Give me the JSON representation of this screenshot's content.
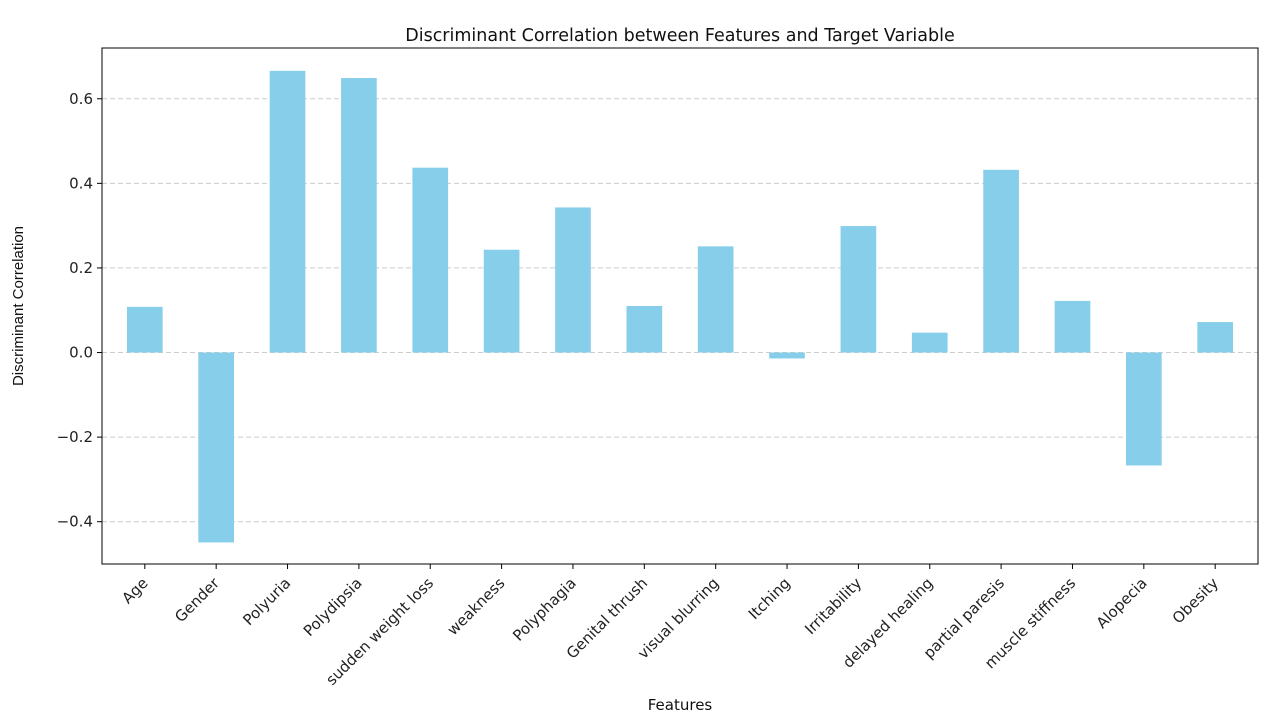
{
  "chart_data": {
    "type": "bar",
    "title": "Discriminant Correlation between Features and Target Variable",
    "xlabel": "Features",
    "ylabel": "Discriminant Correlation",
    "categories": [
      "Age",
      "Gender",
      "Polyuria",
      "Polydipsia",
      "sudden weight loss",
      "weakness",
      "Polyphagia",
      "Genital thrush",
      "visual blurring",
      "Itching",
      "Irritability",
      "delayed healing",
      "partial paresis",
      "muscle stiffness",
      "Alopecia",
      "Obesity"
    ],
    "values": [
      0.108,
      -0.449,
      0.666,
      0.649,
      0.437,
      0.243,
      0.343,
      0.11,
      0.251,
      -0.014,
      0.299,
      0.047,
      0.432,
      0.122,
      -0.267,
      0.072
    ],
    "ylim": [
      -0.5,
      0.72
    ],
    "yticks": [
      -0.4,
      -0.2,
      0.0,
      0.2,
      0.4,
      0.6
    ],
    "ytick_labels": [
      "−0.4",
      "−0.2",
      "0.0",
      "0.2",
      "0.4",
      "0.6"
    ],
    "bar_color": "#87ceeb",
    "grid": "y-dashed",
    "grid_color": "#cccccc"
  }
}
